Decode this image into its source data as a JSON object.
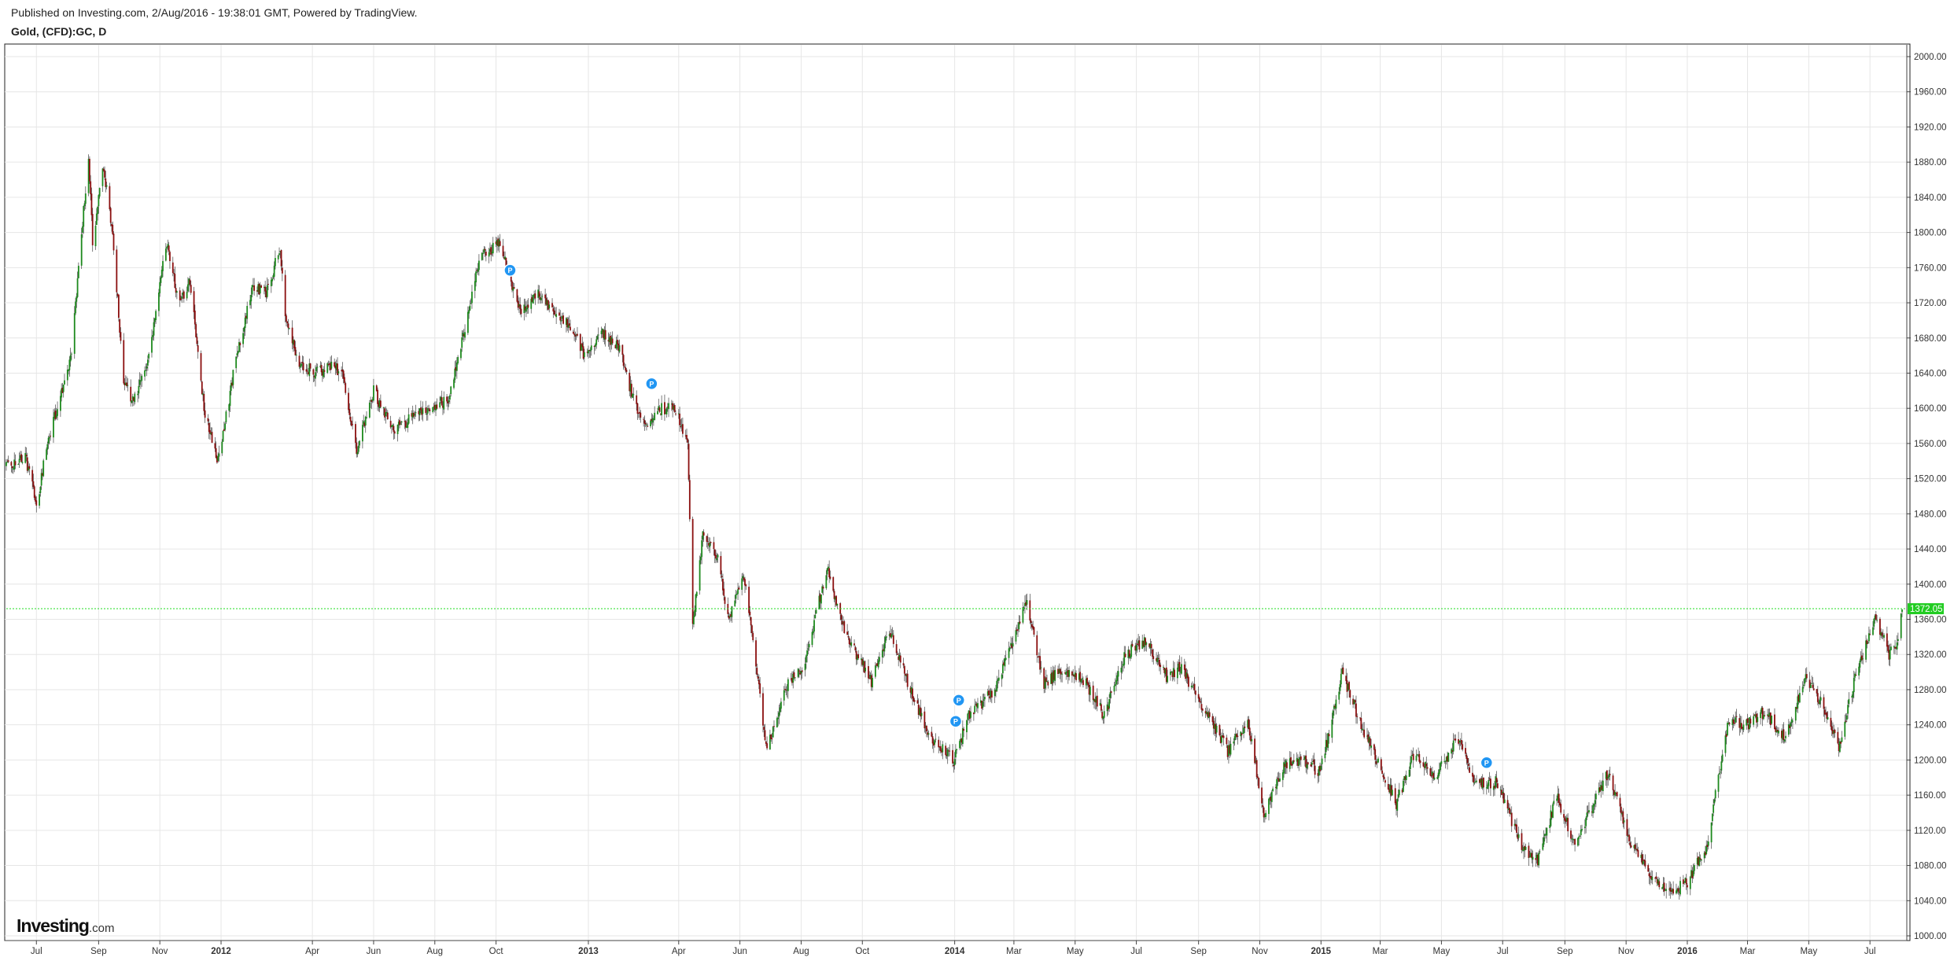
{
  "header": {
    "published": "Published on Investing.com, 2/Aug/2016 - 19:38:01 GMT, Powered by TradingView.",
    "symbol": "Gold, (CFD):GC, D"
  },
  "logo": {
    "brand": "Investing",
    "suffix": ".com"
  },
  "colors": {
    "up": "#1e8a1e",
    "down": "#8b0f0f",
    "wick": "#444444",
    "grid": "#e6e6e6",
    "last_price_line": "#22dd22",
    "last_price_badge": "#22cc22",
    "marker": "#2196f3"
  },
  "chart_data": {
    "type": "candlestick",
    "title": "Gold, (CFD):GC, D",
    "xlabel": "",
    "ylabel": "",
    "ylim": [
      1000,
      2000
    ],
    "grid": true,
    "y_ticks": [
      "1000.00",
      "1040.00",
      "1080.00",
      "1120.00",
      "1160.00",
      "1200.00",
      "1240.00",
      "1280.00",
      "1320.00",
      "1360.00",
      "1400.00",
      "1440.00",
      "1480.00",
      "1520.00",
      "1560.00",
      "1600.00",
      "1640.00",
      "1680.00",
      "1720.00",
      "1760.00",
      "1800.00",
      "1840.00",
      "1880.00",
      "1920.00",
      "1960.00",
      "2000.00"
    ],
    "x_range": [
      "2011-06-01",
      "2016-08-02"
    ],
    "x_ticks": [
      {
        "label": "Jul",
        "date": "2011-07-01",
        "bold": false
      },
      {
        "label": "Sep",
        "date": "2011-09-01",
        "bold": false
      },
      {
        "label": "Nov",
        "date": "2011-11-01",
        "bold": false
      },
      {
        "label": "2012",
        "date": "2012-01-01",
        "bold": true
      },
      {
        "label": "Apr",
        "date": "2012-04-01",
        "bold": false
      },
      {
        "label": "Jun",
        "date": "2012-06-01",
        "bold": false
      },
      {
        "label": "Aug",
        "date": "2012-08-01",
        "bold": false
      },
      {
        "label": "Oct",
        "date": "2012-10-01",
        "bold": false
      },
      {
        "label": "2013",
        "date": "2013-01-01",
        "bold": true
      },
      {
        "label": "Apr",
        "date": "2013-04-01",
        "bold": false
      },
      {
        "label": "Jun",
        "date": "2013-06-01",
        "bold": false
      },
      {
        "label": "Aug",
        "date": "2013-08-01",
        "bold": false
      },
      {
        "label": "Oct",
        "date": "2013-10-01",
        "bold": false
      },
      {
        "label": "2014",
        "date": "2014-01-01",
        "bold": true
      },
      {
        "label": "Mar",
        "date": "2014-03-01",
        "bold": false
      },
      {
        "label": "May",
        "date": "2014-05-01",
        "bold": false
      },
      {
        "label": "Jul",
        "date": "2014-07-01",
        "bold": false
      },
      {
        "label": "Sep",
        "date": "2014-09-01",
        "bold": false
      },
      {
        "label": "Nov",
        "date": "2014-11-01",
        "bold": false
      },
      {
        "label": "2015",
        "date": "2015-01-01",
        "bold": true
      },
      {
        "label": "Mar",
        "date": "2015-03-01",
        "bold": false
      },
      {
        "label": "May",
        "date": "2015-05-01",
        "bold": false
      },
      {
        "label": "Jul",
        "date": "2015-07-01",
        "bold": false
      },
      {
        "label": "Sep",
        "date": "2015-09-01",
        "bold": false
      },
      {
        "label": "Nov",
        "date": "2015-11-01",
        "bold": false
      },
      {
        "label": "2016",
        "date": "2016-01-01",
        "bold": true
      },
      {
        "label": "Mar",
        "date": "2016-03-01",
        "bold": false
      },
      {
        "label": "May",
        "date": "2016-05-01",
        "bold": false
      },
      {
        "label": "Jul",
        "date": "2016-07-01",
        "bold": false
      }
    ],
    "last_price": "1372.05",
    "close_path": [
      {
        "date": "2011-06-01",
        "close": 1535
      },
      {
        "date": "2011-06-20",
        "close": 1545
      },
      {
        "date": "2011-07-01",
        "close": 1490
      },
      {
        "date": "2011-07-12",
        "close": 1560
      },
      {
        "date": "2011-07-25",
        "close": 1615
      },
      {
        "date": "2011-08-05",
        "close": 1660
      },
      {
        "date": "2011-08-12",
        "close": 1760
      },
      {
        "date": "2011-08-22",
        "close": 1890
      },
      {
        "date": "2011-08-26",
        "close": 1790
      },
      {
        "date": "2011-09-06",
        "close": 1875
      },
      {
        "date": "2011-09-15",
        "close": 1800
      },
      {
        "date": "2011-09-26",
        "close": 1630
      },
      {
        "date": "2011-10-05",
        "close": 1610
      },
      {
        "date": "2011-10-20",
        "close": 1650
      },
      {
        "date": "2011-11-08",
        "close": 1790
      },
      {
        "date": "2011-11-20",
        "close": 1720
      },
      {
        "date": "2011-12-01",
        "close": 1745
      },
      {
        "date": "2011-12-15",
        "close": 1600
      },
      {
        "date": "2011-12-29",
        "close": 1540
      },
      {
        "date": "2012-01-15",
        "close": 1650
      },
      {
        "date": "2012-02-01",
        "close": 1740
      },
      {
        "date": "2012-02-15",
        "close": 1730
      },
      {
        "date": "2012-02-29",
        "close": 1785
      },
      {
        "date": "2012-03-05",
        "close": 1700
      },
      {
        "date": "2012-03-20",
        "close": 1650
      },
      {
        "date": "2012-04-05",
        "close": 1640
      },
      {
        "date": "2012-04-20",
        "close": 1650
      },
      {
        "date": "2012-05-01",
        "close": 1640
      },
      {
        "date": "2012-05-15",
        "close": 1550
      },
      {
        "date": "2012-06-01",
        "close": 1620
      },
      {
        "date": "2012-06-20",
        "close": 1575
      },
      {
        "date": "2012-07-10",
        "close": 1590
      },
      {
        "date": "2012-07-25",
        "close": 1600
      },
      {
        "date": "2012-08-15",
        "close": 1610
      },
      {
        "date": "2012-08-31",
        "close": 1690
      },
      {
        "date": "2012-09-15",
        "close": 1770
      },
      {
        "date": "2012-10-04",
        "close": 1790
      },
      {
        "date": "2012-10-25",
        "close": 1710
      },
      {
        "date": "2012-11-10",
        "close": 1730
      },
      {
        "date": "2012-11-30",
        "close": 1710
      },
      {
        "date": "2012-12-15",
        "close": 1690
      },
      {
        "date": "2012-12-28",
        "close": 1660
      },
      {
        "date": "2013-01-15",
        "close": 1685
      },
      {
        "date": "2013-01-31",
        "close": 1670
      },
      {
        "date": "2013-02-15",
        "close": 1610
      },
      {
        "date": "2013-02-28",
        "close": 1580
      },
      {
        "date": "2013-03-15",
        "close": 1600
      },
      {
        "date": "2013-03-29",
        "close": 1600
      },
      {
        "date": "2013-04-10",
        "close": 1560
      },
      {
        "date": "2013-04-12",
        "close": 1480
      },
      {
        "date": "2013-04-15",
        "close": 1350
      },
      {
        "date": "2013-04-25",
        "close": 1460
      },
      {
        "date": "2013-05-10",
        "close": 1430
      },
      {
        "date": "2013-05-20",
        "close": 1360
      },
      {
        "date": "2013-06-05",
        "close": 1410
      },
      {
        "date": "2013-06-20",
        "close": 1280
      },
      {
        "date": "2013-06-28",
        "close": 1210
      },
      {
        "date": "2013-07-15",
        "close": 1280
      },
      {
        "date": "2013-08-05",
        "close": 1310
      },
      {
        "date": "2013-08-27",
        "close": 1420
      },
      {
        "date": "2013-09-10",
        "close": 1360
      },
      {
        "date": "2013-09-20",
        "close": 1330
      },
      {
        "date": "2013-10-10",
        "close": 1290
      },
      {
        "date": "2013-10-28",
        "close": 1350
      },
      {
        "date": "2013-11-15",
        "close": 1290
      },
      {
        "date": "2013-12-05",
        "close": 1230
      },
      {
        "date": "2013-12-31",
        "close": 1200
      },
      {
        "date": "2014-01-15",
        "close": 1250
      },
      {
        "date": "2014-02-10",
        "close": 1280
      },
      {
        "date": "2014-03-14",
        "close": 1380
      },
      {
        "date": "2014-03-31",
        "close": 1285
      },
      {
        "date": "2014-04-15",
        "close": 1300
      },
      {
        "date": "2014-05-10",
        "close": 1290
      },
      {
        "date": "2014-05-30",
        "close": 1250
      },
      {
        "date": "2014-06-20",
        "close": 1320
      },
      {
        "date": "2014-07-10",
        "close": 1335
      },
      {
        "date": "2014-07-31",
        "close": 1295
      },
      {
        "date": "2014-08-15",
        "close": 1305
      },
      {
        "date": "2014-09-10",
        "close": 1250
      },
      {
        "date": "2014-09-30",
        "close": 1210
      },
      {
        "date": "2014-10-20",
        "close": 1245
      },
      {
        "date": "2014-11-05",
        "close": 1140
      },
      {
        "date": "2014-11-25",
        "close": 1195
      },
      {
        "date": "2014-12-15",
        "close": 1200
      },
      {
        "date": "2014-12-31",
        "close": 1185
      },
      {
        "date": "2015-01-22",
        "close": 1300
      },
      {
        "date": "2015-02-10",
        "close": 1240
      },
      {
        "date": "2015-03-17",
        "close": 1150
      },
      {
        "date": "2015-04-05",
        "close": 1210
      },
      {
        "date": "2015-04-25",
        "close": 1180
      },
      {
        "date": "2015-05-18",
        "close": 1225
      },
      {
        "date": "2015-06-05",
        "close": 1170
      },
      {
        "date": "2015-06-25",
        "close": 1175
      },
      {
        "date": "2015-07-20",
        "close": 1100
      },
      {
        "date": "2015-08-05",
        "close": 1085
      },
      {
        "date": "2015-08-24",
        "close": 1160
      },
      {
        "date": "2015-09-10",
        "close": 1105
      },
      {
        "date": "2015-09-25",
        "close": 1140
      },
      {
        "date": "2015-10-14",
        "close": 1185
      },
      {
        "date": "2015-11-05",
        "close": 1105
      },
      {
        "date": "2015-11-25",
        "close": 1070
      },
      {
        "date": "2015-12-16",
        "close": 1050
      },
      {
        "date": "2015-12-31",
        "close": 1060
      },
      {
        "date": "2016-01-20",
        "close": 1100
      },
      {
        "date": "2016-02-11",
        "close": 1245
      },
      {
        "date": "2016-03-01",
        "close": 1240
      },
      {
        "date": "2016-03-18",
        "close": 1255
      },
      {
        "date": "2016-04-07",
        "close": 1225
      },
      {
        "date": "2016-04-29",
        "close": 1295
      },
      {
        "date": "2016-05-20",
        "close": 1250
      },
      {
        "date": "2016-05-31",
        "close": 1210
      },
      {
        "date": "2016-06-15",
        "close": 1290
      },
      {
        "date": "2016-06-24",
        "close": 1320
      },
      {
        "date": "2016-07-06",
        "close": 1365
      },
      {
        "date": "2016-07-20",
        "close": 1320
      },
      {
        "date": "2016-07-27",
        "close": 1330
      },
      {
        "date": "2016-08-02",
        "close": 1372.05
      }
    ],
    "markers": [
      {
        "date": "2012-10-15",
        "price": 1757
      },
      {
        "date": "2013-03-05",
        "price": 1628
      },
      {
        "date": "2014-01-05",
        "price": 1268
      },
      {
        "date": "2014-01-02",
        "price": 1244
      },
      {
        "date": "2015-06-15",
        "price": 1197
      }
    ],
    "marker_label": "P"
  }
}
